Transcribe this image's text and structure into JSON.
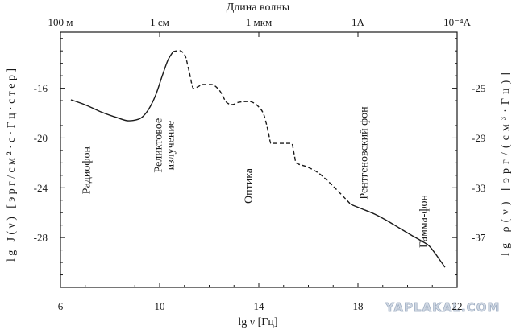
{
  "watermark": "YAPLAKAL.COM",
  "chart_data": {
    "type": "line",
    "xlabel": "lg ν [Гц]",
    "ylabel": "lg J(ν) [эрг/см²·с·Гц·стер]",
    "ylabel_right": "lg ρ(ν) [эрг/(см³·Гц)]",
    "top_axis": {
      "label": "Длина волны",
      "ticks": [
        {
          "x": 6,
          "label": "100 м"
        },
        {
          "x": 10,
          "label": "1 см"
        },
        {
          "x": 14,
          "label": "1 мкм"
        },
        {
          "x": 18,
          "label": "1A"
        },
        {
          "x": 22,
          "label": "10⁻⁴A"
        }
      ]
    },
    "xlim": [
      6,
      22
    ],
    "ylim": [
      -32,
      -11.5
    ],
    "ylim_right": [
      -41,
      -20.5
    ],
    "x_ticks": [
      6,
      10,
      14,
      18,
      22
    ],
    "y_ticks": [
      -16,
      -20,
      -24,
      -28
    ],
    "y_ticks_right": [
      -25,
      -29,
      -33,
      -37
    ],
    "grid": false,
    "line_color": "#1a1a1a",
    "series": [
      {
        "dashed": false,
        "points": [
          [
            6.42,
            -16.93
          ],
          [
            6.98,
            -17.32
          ],
          [
            7.63,
            -17.9
          ],
          [
            8.28,
            -18.36
          ],
          [
            8.76,
            -18.62
          ],
          [
            9.15,
            -18.49
          ],
          [
            9.51,
            -17.84
          ],
          [
            9.84,
            -16.55
          ],
          [
            10.13,
            -14.86
          ],
          [
            10.33,
            -13.77
          ],
          [
            10.55,
            -13.05
          ]
        ]
      },
      {
        "dashed": true,
        "points": [
          [
            10.55,
            -13.05
          ],
          [
            10.8,
            -12.98
          ],
          [
            11.02,
            -13.35
          ],
          [
            11.18,
            -14.55
          ],
          [
            11.37,
            -16.03
          ],
          [
            11.53,
            -15.9
          ],
          [
            11.76,
            -15.7
          ],
          [
            12.08,
            -15.7
          ],
          [
            12.41,
            -16.16
          ],
          [
            12.73,
            -17.19
          ],
          [
            12.93,
            -17.32
          ],
          [
            13.19,
            -17.13
          ],
          [
            13.58,
            -17.06
          ],
          [
            13.97,
            -17.45
          ],
          [
            14.23,
            -18.29
          ],
          [
            14.39,
            -19.59
          ],
          [
            14.49,
            -20.43
          ],
          [
            14.88,
            -20.43
          ],
          [
            15.33,
            -20.43
          ],
          [
            15.43,
            -21.33
          ],
          [
            15.5,
            -21.98
          ],
          [
            15.92,
            -22.3
          ],
          [
            16.41,
            -22.82
          ],
          [
            16.89,
            -23.66
          ],
          [
            17.28,
            -24.44
          ],
          [
            17.71,
            -25.34
          ]
        ]
      },
      {
        "dashed": false,
        "points": [
          [
            17.71,
            -25.34
          ],
          [
            18.2,
            -25.73
          ],
          [
            18.68,
            -26.12
          ],
          [
            19.17,
            -26.64
          ],
          [
            19.66,
            -27.22
          ],
          [
            20.15,
            -27.8
          ],
          [
            20.54,
            -28.25
          ],
          [
            20.89,
            -28.71
          ],
          [
            21.12,
            -29.29
          ],
          [
            21.28,
            -29.74
          ],
          [
            21.51,
            -30.39
          ]
        ]
      }
    ],
    "annotations": [
      {
        "lines": [
          "Радиофон"
        ],
        "x": 7.07,
        "y": -22.6
      },
      {
        "lines": [
          "Реликтовое",
          "излучение"
        ],
        "x": 10.21,
        "y": -20.6
      },
      {
        "lines": [
          "Оптика"
        ],
        "x": 13.61,
        "y": -23.85
      },
      {
        "lines": [
          "Рентгеновский фон"
        ],
        "x": 18.26,
        "y": -21.2
      },
      {
        "lines": [
          "Гамма-фон"
        ],
        "x": 20.67,
        "y": -26.7
      }
    ]
  }
}
